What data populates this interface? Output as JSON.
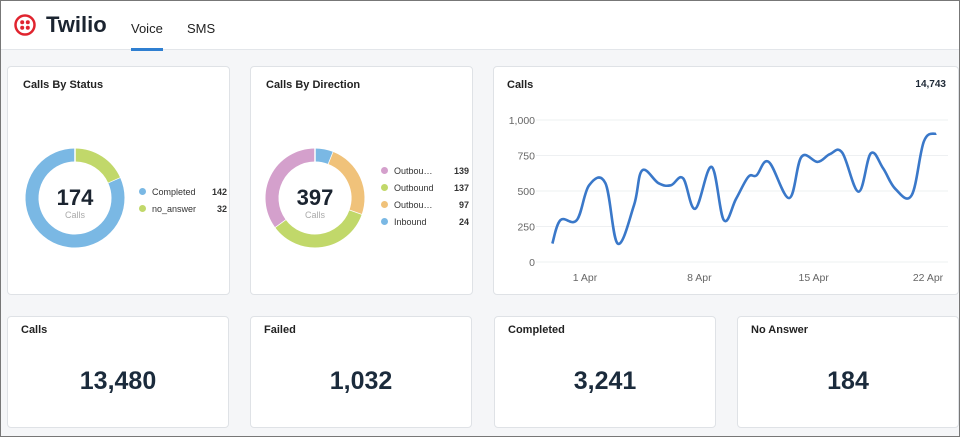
{
  "header": {
    "brand": "Twilio",
    "brand_color": "#e0242f",
    "tabs": [
      {
        "label": "Voice",
        "active": true
      },
      {
        "label": "SMS",
        "active": false
      }
    ]
  },
  "status_card": {
    "title": "Calls By Status",
    "total": "174",
    "total_label": "Calls",
    "items": [
      {
        "label": "Completed",
        "value": 142,
        "color": "#7ab8e4"
      },
      {
        "label": "no_answer",
        "value": 32,
        "color": "#c1d86a"
      }
    ],
    "draw_order": [
      1,
      0
    ]
  },
  "direction_card": {
    "title": "Calls By Direction",
    "total": "397",
    "total_label": "Calls",
    "items": [
      {
        "label": "Outbou…",
        "value": 139,
        "color": "#d4a0cc"
      },
      {
        "label": "Outbound",
        "value": 137,
        "color": "#c1d86a"
      },
      {
        "label": "Outbou…",
        "value": 97,
        "color": "#f0c27a"
      },
      {
        "label": "Inbound",
        "value": 24,
        "color": "#7ab8e4"
      }
    ],
    "draw_order": [
      3,
      2,
      1,
      0
    ]
  },
  "calls_chart": {
    "title": "Calls",
    "total": "14,743"
  },
  "chart_data": {
    "type": "line",
    "title": "Calls",
    "ylim": [
      0,
      1000
    ],
    "yticks": [
      "0",
      "250",
      "500",
      "750",
      "1,000"
    ],
    "ytick_values": [
      0,
      250,
      500,
      750,
      1000
    ],
    "xticks": [
      "1 Apr",
      "8 Apr",
      "15 Apr",
      "22 Apr"
    ],
    "grid": true,
    "color": "#3a78c9",
    "points": [
      [
        "30 Mar 00:00",
        130
      ],
      [
        "30 Mar 12:00",
        295
      ],
      [
        "31 Mar 12:00",
        295
      ],
      [
        "1 Apr 06:00",
        540
      ],
      [
        "2 Apr 06:00",
        555
      ],
      [
        "3 Apr 00:00",
        130
      ],
      [
        "4 Apr 00:00",
        400
      ],
      [
        "4 Apr 12:00",
        645
      ],
      [
        "5 Apr 12:00",
        555
      ],
      [
        "6 Apr 06:00",
        540
      ],
      [
        "7 Apr 00:00",
        590
      ],
      [
        "7 Apr 18:00",
        375
      ],
      [
        "8 Apr 18:00",
        670
      ],
      [
        "9 Apr 12:00",
        295
      ],
      [
        "10 Apr 06:00",
        445
      ],
      [
        "11 Apr 00:00",
        600
      ],
      [
        "11 Apr 12:00",
        610
      ],
      [
        "12 Apr 06:00",
        705
      ],
      [
        "13 Apr 12:00",
        450
      ],
      [
        "14 Apr 06:00",
        740
      ],
      [
        "15 Apr 06:00",
        705
      ],
      [
        "16 Apr 00:00",
        760
      ],
      [
        "16 Apr 18:00",
        770
      ],
      [
        "17 Apr 18:00",
        495
      ],
      [
        "18 Apr 12:00",
        765
      ],
      [
        "19 Apr 06:00",
        660
      ],
      [
        "20 Apr 00:00",
        515
      ],
      [
        "21 Apr 00:00",
        470
      ],
      [
        "21 Apr 18:00",
        850
      ],
      [
        "22 Apr 12:00",
        905
      ]
    ]
  },
  "stats": [
    {
      "title": "Calls",
      "value": "13,480"
    },
    {
      "title": "Failed",
      "value": "1,032"
    },
    {
      "title": "Completed",
      "value": "3,241"
    },
    {
      "title": "No Answer",
      "value": "184"
    }
  ]
}
